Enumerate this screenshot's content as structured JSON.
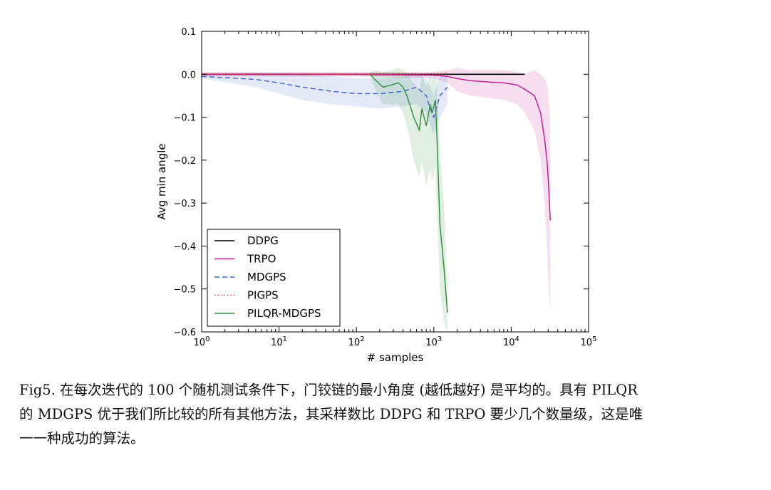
{
  "chart_data": {
    "type": "line",
    "title": "",
    "xlabel": "# samples",
    "ylabel": "Avg min angle",
    "xscale": "log",
    "xlim": [
      1,
      100000
    ],
    "ylim": [
      -0.6,
      0.1
    ],
    "x_tick_labels": [
      "10^0",
      "10^1",
      "10^2",
      "10^3",
      "10^4",
      "10^5"
    ],
    "y_tick_labels": [
      "0.1",
      "0.0",
      "−0.1",
      "−0.2",
      "−0.3",
      "−0.4",
      "−0.5",
      "−0.6"
    ],
    "grid": false,
    "legend_position": "lower-left",
    "series": [
      {
        "name": "DDPG",
        "color": "#000000",
        "style": "solid",
        "x": [
          1,
          10,
          100,
          1000,
          5000,
          15000
        ],
        "y": [
          0.0,
          0.0,
          0.0,
          0.0,
          0.0,
          0.0
        ],
        "band_low": [
          -0.003,
          -0.003,
          -0.003,
          -0.003,
          -0.003,
          -0.003
        ],
        "band_high": [
          0.003,
          0.003,
          0.003,
          0.003,
          0.003,
          0.003
        ]
      },
      {
        "name": "TRPO",
        "color": "#c0148c",
        "style": "solid",
        "x": [
          1,
          100,
          1000,
          1500,
          2000,
          3000,
          5000,
          8000,
          12000,
          15000,
          20000,
          24000,
          27000,
          29000,
          30000,
          31000,
          32000
        ],
        "y": [
          0.0,
          0.0,
          -0.002,
          -0.005,
          -0.01,
          -0.015,
          -0.018,
          -0.02,
          -0.025,
          -0.035,
          -0.05,
          -0.09,
          -0.15,
          -0.2,
          -0.24,
          -0.29,
          -0.34
        ],
        "band_low": [
          -0.005,
          -0.005,
          -0.01,
          -0.02,
          -0.04,
          -0.05,
          -0.055,
          -0.06,
          -0.07,
          -0.09,
          -0.13,
          -0.2,
          -0.3,
          -0.4,
          -0.47,
          -0.52,
          -0.55
        ],
        "band_high": [
          0.005,
          0.005,
          0.005,
          0.01,
          0.015,
          0.01,
          0.01,
          0.01,
          0.005,
          0.0,
          0.01,
          0.0,
          -0.01,
          -0.02,
          -0.04,
          -0.08,
          -0.1
        ]
      },
      {
        "name": "MDGPS",
        "color": "#4060d0",
        "style": "dashed",
        "x": [
          1,
          5,
          10,
          20,
          50,
          100,
          200,
          400,
          600,
          800,
          900,
          1000,
          1200,
          1500
        ],
        "y": [
          -0.005,
          -0.012,
          -0.02,
          -0.03,
          -0.04,
          -0.045,
          -0.045,
          -0.04,
          -0.03,
          -0.05,
          -0.08,
          -0.1,
          -0.05,
          -0.03
        ],
        "band_low": [
          -0.01,
          -0.03,
          -0.045,
          -0.06,
          -0.07,
          -0.075,
          -0.08,
          -0.075,
          -0.07,
          -0.09,
          -0.12,
          -0.14,
          -0.1,
          -0.07
        ],
        "band_high": [
          0.0,
          0.003,
          0.003,
          0.0,
          -0.005,
          -0.01,
          -0.01,
          -0.005,
          0.0,
          -0.01,
          -0.03,
          -0.05,
          0.0,
          0.005
        ]
      },
      {
        "name": "PIGPS",
        "color": "#e04040",
        "style": "dotted",
        "x": [
          1,
          10,
          100,
          1000,
          1500
        ],
        "y": [
          0.0,
          0.0,
          0.0,
          0.0,
          0.0
        ],
        "band_low": [
          -0.004,
          -0.004,
          -0.004,
          -0.004,
          -0.004
        ],
        "band_high": [
          0.004,
          0.004,
          0.004,
          0.004,
          0.004
        ]
      },
      {
        "name": "PILQR-MDGPS",
        "color": "#2e8b3a",
        "style": "solid",
        "x": [
          150,
          180,
          220,
          280,
          350,
          400,
          450,
          550,
          650,
          700,
          800,
          900,
          950,
          1050,
          1100,
          1200,
          1350,
          1500
        ],
        "y": [
          0.0,
          -0.015,
          -0.03,
          -0.025,
          -0.02,
          -0.03,
          -0.05,
          -0.1,
          -0.13,
          -0.08,
          -0.12,
          -0.07,
          -0.09,
          -0.06,
          -0.15,
          -0.35,
          -0.45,
          -0.555
        ],
        "band_low": [
          -0.005,
          -0.04,
          -0.07,
          -0.07,
          -0.07,
          -0.09,
          -0.12,
          -0.2,
          -0.24,
          -0.2,
          -0.26,
          -0.22,
          -0.25,
          -0.22,
          -0.32,
          -0.5,
          -0.58,
          -0.6
        ],
        "band_high": [
          0.005,
          0.01,
          0.005,
          0.01,
          0.015,
          0.01,
          0.0,
          -0.02,
          -0.04,
          0.0,
          -0.03,
          0.0,
          -0.01,
          0.0,
          -0.02,
          -0.18,
          -0.3,
          -0.5
        ]
      }
    ]
  },
  "caption": {
    "line1": "Fig5. 在每次迭代的 100 个随机测试条件下，门铰链的最小角度 (越低越好) 是平均的。具有 PILQR",
    "line2": "的 MDGPS 优于我们所比较的所有其他方法，其采样数比 DDPG 和 TRPO 要少几个数量级，这是唯",
    "line3": "一一种成功的算法。"
  }
}
